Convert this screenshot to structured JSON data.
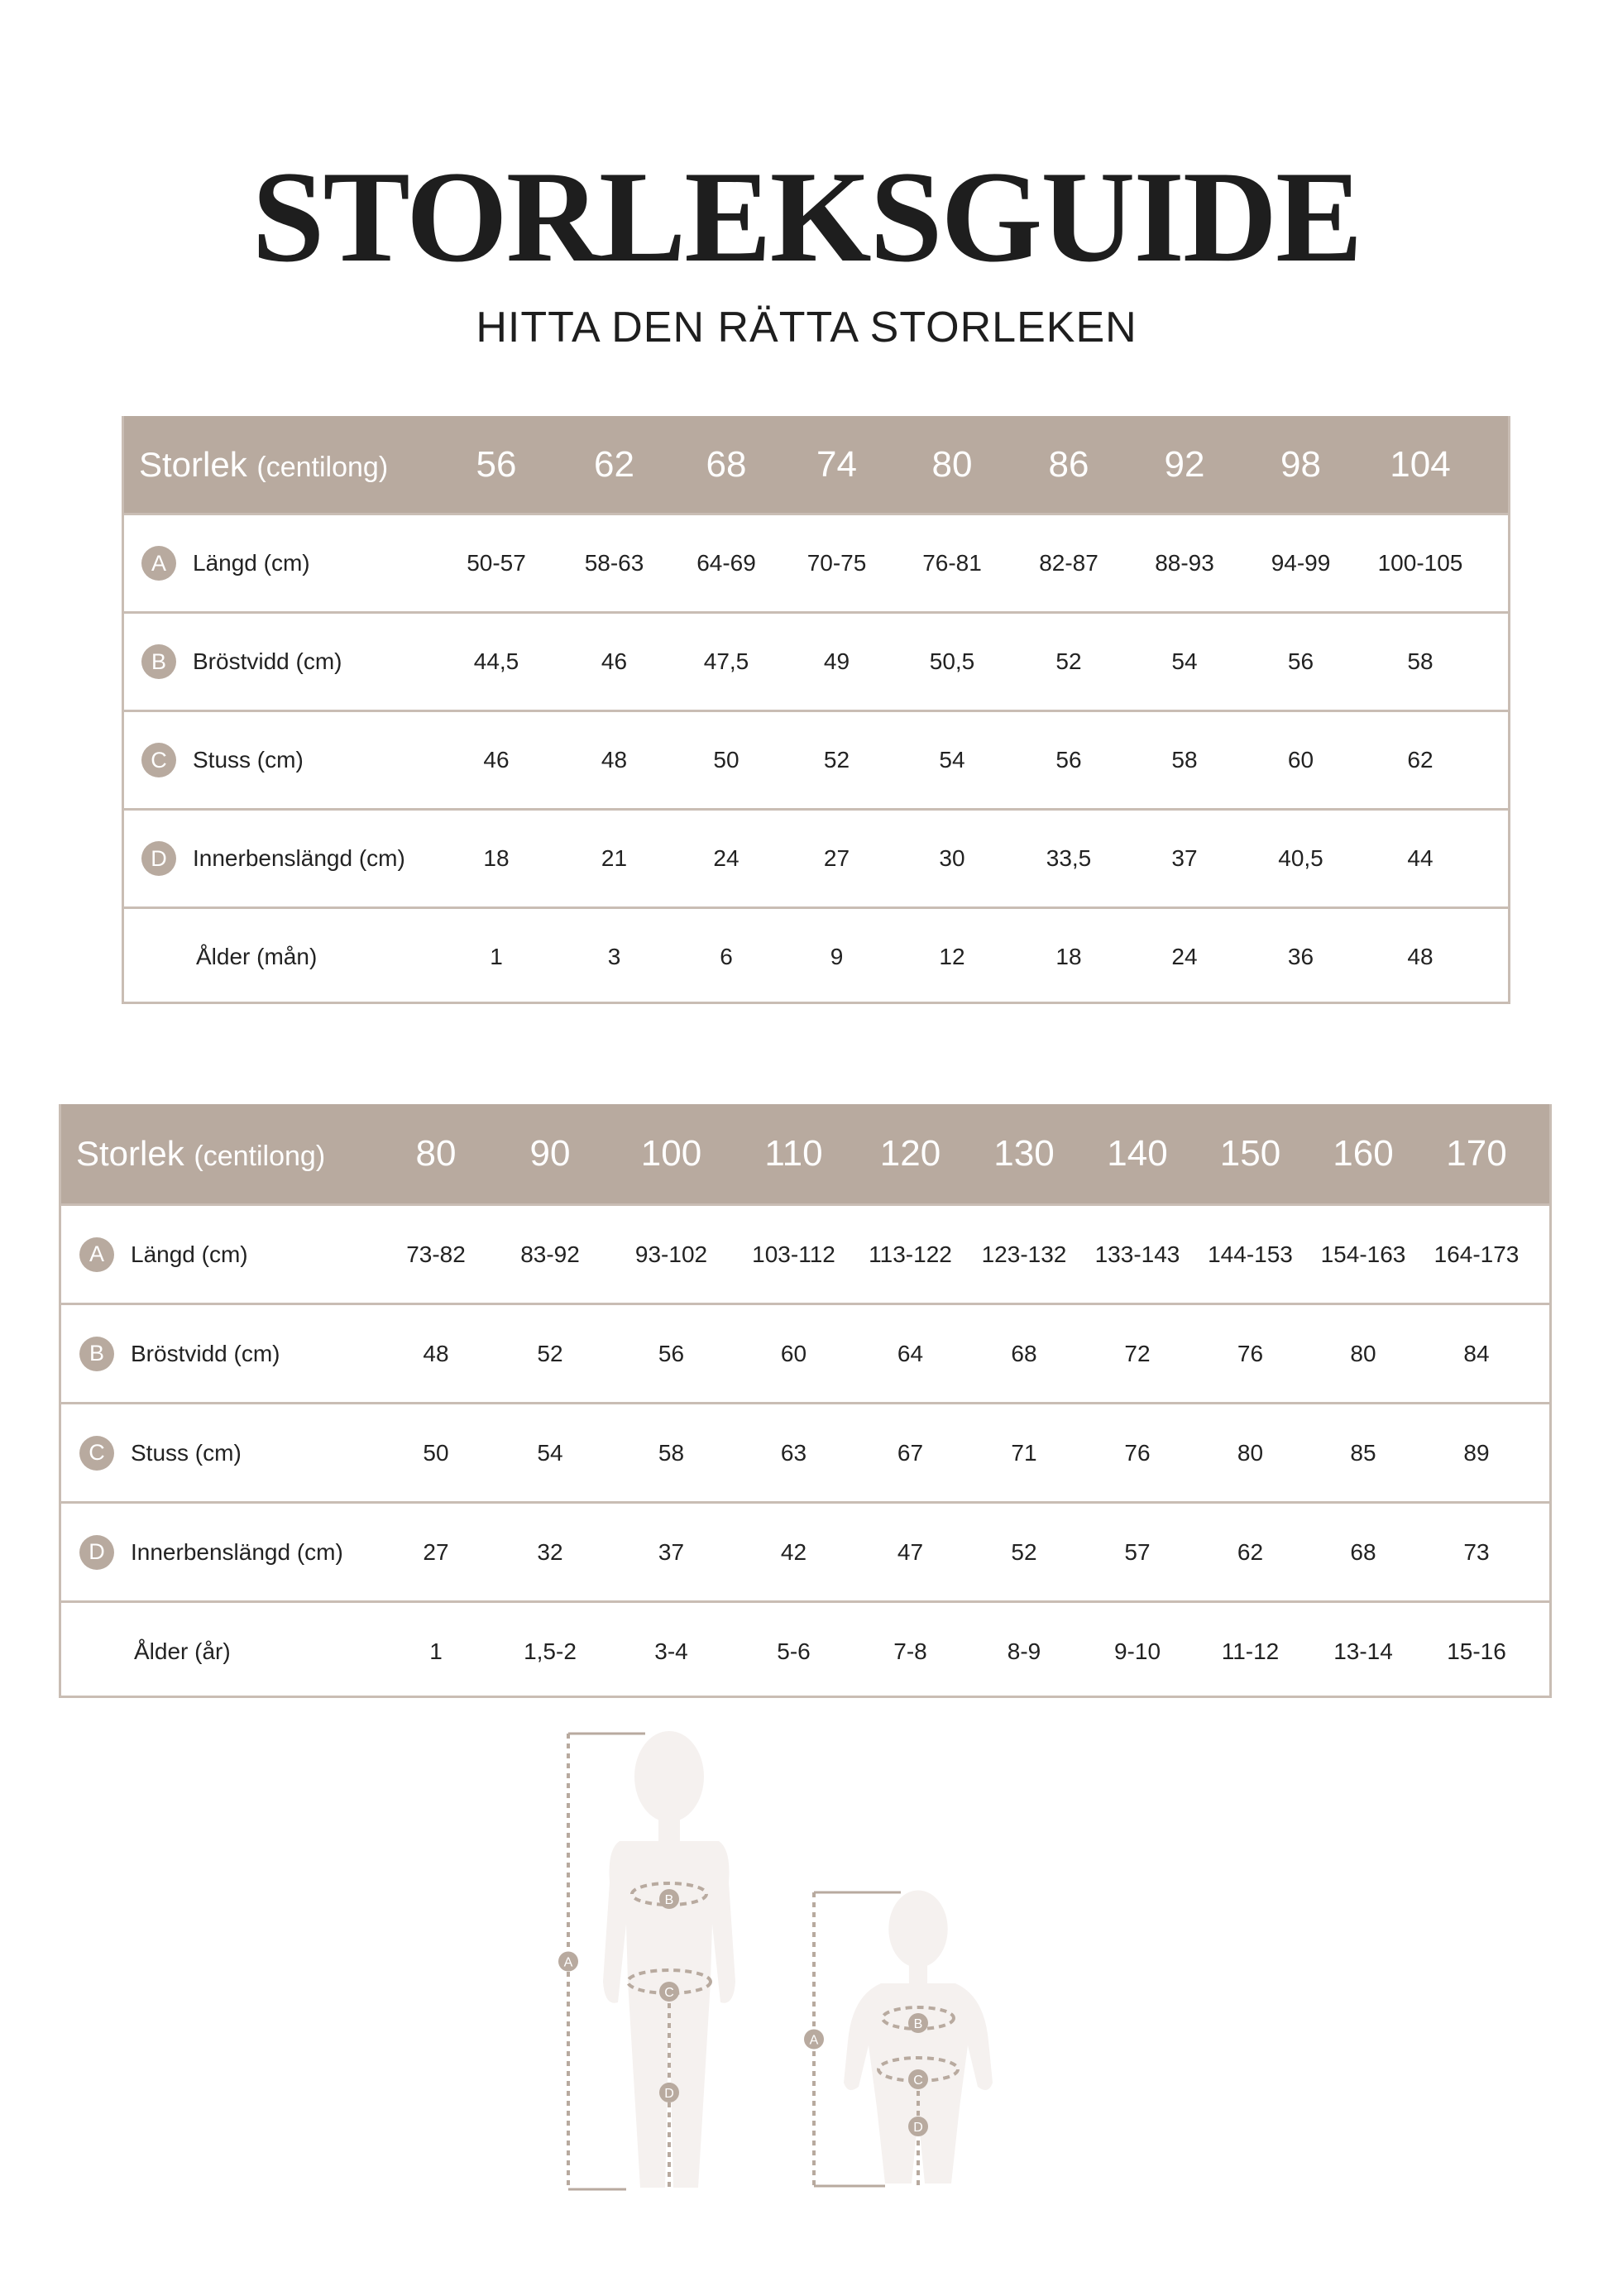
{
  "title": "STORLEKSGUIDE",
  "subtitle": "HITTA DEN RÄTTA STORLEKEN",
  "colors": {
    "accent": "#b8aa9f",
    "border": "#c9bdb4",
    "silhouette": "#f5f1ef"
  },
  "tables": [
    {
      "header": {
        "label": "Storlek",
        "label_small": "(centilong)",
        "sizes": [
          "56",
          "62",
          "68",
          "74",
          "80",
          "86",
          "92",
          "98",
          "104"
        ]
      },
      "rows": [
        {
          "badge": "A",
          "label": "Längd (cm)",
          "values": [
            "50-57",
            "58-63",
            "64-69",
            "70-75",
            "76-81",
            "82-87",
            "88-93",
            "94-99",
            "100-105"
          ]
        },
        {
          "badge": "B",
          "label": "Bröstvidd (cm)",
          "values": [
            "44,5",
            "46",
            "47,5",
            "49",
            "50,5",
            "52",
            "54",
            "56",
            "58"
          ]
        },
        {
          "badge": "C",
          "label": "Stuss (cm)",
          "values": [
            "46",
            "48",
            "50",
            "52",
            "54",
            "56",
            "58",
            "60",
            "62"
          ]
        },
        {
          "badge": "D",
          "label": "Innerbenslängd (cm)",
          "values": [
            "18",
            "21",
            "24",
            "27",
            "30",
            "33,5",
            "37",
            "40,5",
            "44"
          ]
        },
        {
          "badge": "",
          "label": "Ålder (mån)",
          "values": [
            "1",
            "3",
            "6",
            "9",
            "12",
            "18",
            "24",
            "36",
            "48"
          ]
        }
      ]
    },
    {
      "header": {
        "label": "Storlek",
        "label_small": "(centilong)",
        "sizes": [
          "80",
          "90",
          "100",
          "110",
          "120",
          "130",
          "140",
          "150",
          "160",
          "170"
        ]
      },
      "rows": [
        {
          "badge": "A",
          "label": "Längd (cm)",
          "values": [
            "73-82",
            "83-92",
            "93-102",
            "103-112",
            "113-122",
            "123-132",
            "133-143",
            "144-153",
            "154-163",
            "164-173"
          ]
        },
        {
          "badge": "B",
          "label": "Bröstvidd (cm)",
          "values": [
            "48",
            "52",
            "56",
            "60",
            "64",
            "68",
            "72",
            "76",
            "80",
            "84"
          ]
        },
        {
          "badge": "C",
          "label": "Stuss (cm)",
          "values": [
            "50",
            "54",
            "58",
            "63",
            "67",
            "71",
            "76",
            "80",
            "85",
            "89"
          ]
        },
        {
          "badge": "D",
          "label": "Innerbenslängd (cm)",
          "values": [
            "27",
            "32",
            "37",
            "42",
            "47",
            "52",
            "57",
            "62",
            "68",
            "73"
          ]
        },
        {
          "badge": "",
          "label": "Ålder (år)",
          "values": [
            "1",
            "1,5-2",
            "3-4",
            "5-6",
            "7-8",
            "8-9",
            "9-10",
            "11-12",
            "13-14",
            "15-16"
          ]
        }
      ]
    }
  ],
  "figures": {
    "markers": [
      "A",
      "B",
      "C",
      "D"
    ]
  }
}
